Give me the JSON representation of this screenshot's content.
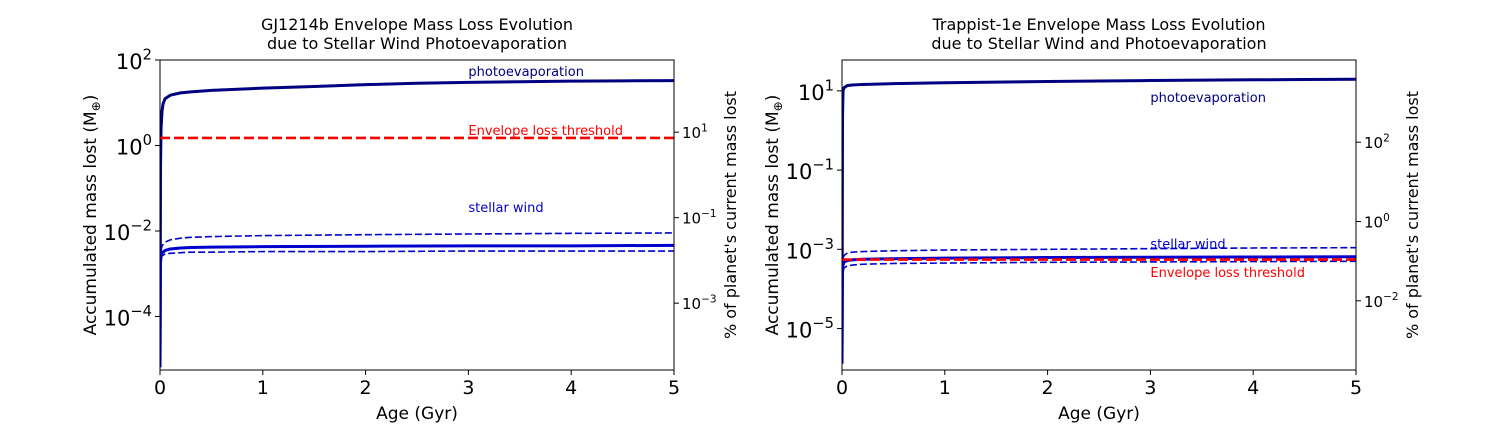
{
  "chart_data": [
    {
      "type": "line",
      "title": [
        "GJ1214b Envelope Mass Loss Evolution",
        "due to Stellar Wind Photoevaporation"
      ],
      "xlabel": "Age (Gyr)",
      "ylabel": "Accumulated mass lost (M",
      "ylabel_sub": "⊕",
      "y2label": "% of planet's current mass lost",
      "x_scale": "linear",
      "y_scale": "log",
      "xlim": [
        0,
        5
      ],
      "ylim": [
        5.6e-06,
        100
      ],
      "y2lim": [
        2.73e-05,
        488
      ],
      "xticks": [
        "0",
        "1",
        "2",
        "3",
        "4",
        "5"
      ],
      "yticks": [
        {
          "base": "10",
          "exp": "2",
          "value": 100
        },
        {
          "base": "10",
          "exp": "0",
          "value": 1
        },
        {
          "base": "10",
          "exp": "−2",
          "value": 0.01
        },
        {
          "base": "10",
          "exp": "−4",
          "value": 0.0001
        }
      ],
      "y2ticks": [
        {
          "base": "10",
          "exp": "1",
          "value": 10
        },
        {
          "base": "10",
          "exp": "−1",
          "value": 0.1
        },
        {
          "base": "10",
          "exp": "−3",
          "value": 0.001
        }
      ],
      "grid": false,
      "series": [
        {
          "name": "photoevaporation",
          "color": "#000080",
          "style": "solid",
          "width": 3,
          "x": [
            0,
            0.005,
            0.01,
            0.02,
            0.03,
            0.05,
            0.1,
            0.2,
            0.3,
            0.5,
            1,
            1.5,
            2,
            2.5,
            3,
            3.5,
            4,
            4.5,
            5
          ],
          "y": [
            6.5e-06,
            0.3,
            2.5,
            6.5,
            9.5,
            12.5,
            15,
            17,
            18,
            19.5,
            22,
            24,
            26.5,
            28.5,
            30,
            31,
            32,
            32.5,
            33
          ]
        },
        {
          "name": "stellar wind",
          "color": "#0000cd",
          "style": "solid",
          "width": 3,
          "x": [
            0,
            0.005,
            0.01,
            0.02,
            0.05,
            0.1,
            0.2,
            0.3,
            0.5,
            1,
            2,
            3,
            4,
            5
          ],
          "y": [
            6.5e-06,
            0.0018,
            0.0026,
            0.0031,
            0.0035,
            0.0038,
            0.004,
            0.0041,
            0.0042,
            0.0043,
            0.0044,
            0.0045,
            0.0045,
            0.0046
          ]
        },
        {
          "name": "",
          "color": "#0000cd",
          "style": "dashed",
          "width": 1.6,
          "x": [
            0.01,
            0.02,
            0.05,
            0.1,
            0.2,
            0.3,
            0.5,
            1,
            2,
            3,
            4,
            5
          ],
          "y": [
            0.0035,
            0.0045,
            0.0055,
            0.0062,
            0.0068,
            0.0071,
            0.0074,
            0.0078,
            0.0082,
            0.0085,
            0.0088,
            0.009
          ]
        },
        {
          "name": "",
          "color": "#0000cd",
          "style": "dashed",
          "width": 1.6,
          "x": [
            0.01,
            0.02,
            0.05,
            0.1,
            0.2,
            0.3,
            0.5,
            1,
            2,
            3,
            4,
            5
          ],
          "y": [
            0.0022,
            0.0026,
            0.0029,
            0.003,
            0.0031,
            0.0032,
            0.0032,
            0.0033,
            0.0033,
            0.0034,
            0.0034,
            0.0034
          ]
        },
        {
          "name": "Envelope loss threshold",
          "color": "#ff0000",
          "style": "dashed",
          "width": 2.6,
          "x": [
            0,
            5
          ],
          "y": [
            1.5,
            1.5
          ]
        }
      ],
      "annotations": [
        {
          "text": "photoevaporation",
          "x": 3.0,
          "y": 55,
          "color": "#000080"
        },
        {
          "text": "Envelope loss threshold",
          "x": 3.0,
          "y": 2.3,
          "color": "#ff0000"
        },
        {
          "text": "stellar wind",
          "x": 3.0,
          "y": 0.036,
          "color": "#0000cd"
        }
      ]
    },
    {
      "type": "line",
      "title": [
        "Trappist-1e Envelope Mass Loss Evolution",
        "due to Stellar Wind and Photoevaporation"
      ],
      "xlabel": "Age (Gyr)",
      "ylabel": "Accumulated mass lost (M",
      "ylabel_sub": "⊕",
      "y2label": "% of planet's current mass lost",
      "x_scale": "linear",
      "y_scale": "log",
      "xlim": [
        0,
        5
      ],
      "ylim": [
        9e-07,
        60
      ],
      "y2lim": [
        0.00018,
        11844
      ],
      "xticks": [
        "0",
        "1",
        "2",
        "3",
        "4",
        "5"
      ],
      "yticks": [
        {
          "base": "10",
          "exp": "1",
          "value": 10
        },
        {
          "base": "10",
          "exp": "−1",
          "value": 0.1
        },
        {
          "base": "10",
          "exp": "−3",
          "value": 0.001
        },
        {
          "base": "10",
          "exp": "−5",
          "value": 1e-05
        }
      ],
      "y2ticks": [
        {
          "base": "10",
          "exp": "2",
          "value": 100
        },
        {
          "base": "10",
          "exp": "0",
          "value": 1
        },
        {
          "base": "10",
          "exp": "−2",
          "value": 0.01
        }
      ],
      "grid": false,
      "series": [
        {
          "name": "photoevaporation",
          "color": "#000080",
          "style": "solid",
          "width": 3,
          "x": [
            0,
            0.005,
            0.01,
            0.02,
            0.05,
            0.1,
            0.2,
            0.5,
            1,
            1.5,
            2,
            2.5,
            3,
            3.5,
            4,
            4.5,
            5
          ],
          "y": [
            1.3e-06,
            2,
            10,
            12,
            13.5,
            14,
            14.5,
            15.2,
            16,
            16.6,
            17.2,
            17.7,
            18.2,
            18.6,
            19,
            19.3,
            19.6
          ]
        },
        {
          "name": "stellar wind",
          "color": "#0000cd",
          "style": "solid",
          "width": 3,
          "x": [
            0,
            0.005,
            0.01,
            0.02,
            0.05,
            0.1,
            0.2,
            0.5,
            1,
            2,
            3,
            4,
            5
          ],
          "y": [
            1.3e-06,
            0.00025,
            0.0004,
            0.00048,
            0.00052,
            0.00054,
            0.00056,
            0.00058,
            0.0006,
            0.00062,
            0.00063,
            0.00064,
            0.00065
          ]
        },
        {
          "name": "",
          "color": "#0000cd",
          "style": "dashed",
          "width": 1.6,
          "x": [
            0.01,
            0.02,
            0.05,
            0.1,
            0.2,
            0.5,
            1,
            2,
            3,
            4,
            5
          ],
          "y": [
            0.0006,
            0.0007,
            0.0008,
            0.00085,
            0.00088,
            0.00092,
            0.00096,
            0.001,
            0.00104,
            0.00108,
            0.0011
          ]
        },
        {
          "name": "",
          "color": "#0000cd",
          "style": "dashed",
          "width": 1.6,
          "x": [
            0.01,
            0.02,
            0.05,
            0.1,
            0.2,
            0.5,
            1,
            2,
            3,
            4,
            5
          ],
          "y": [
            0.00028,
            0.00034,
            0.00038,
            0.0004,
            0.00042,
            0.00044,
            0.00045,
            0.00047,
            0.00048,
            0.00049,
            0.0005
          ]
        },
        {
          "name": "Envelope loss threshold",
          "color": "#ff0000",
          "style": "dashed",
          "width": 2.6,
          "x": [
            0,
            5
          ],
          "y": [
            0.00055,
            0.00055
          ]
        }
      ],
      "annotations": [
        {
          "text": "photoevaporation",
          "x": 3.0,
          "y": 7,
          "color": "#000080"
        },
        {
          "text": "stellar wind",
          "x": 3.0,
          "y": 0.0014,
          "color": "#0000cd"
        },
        {
          "text": "Envelope loss threshold",
          "x": 3.0,
          "y": 0.00027,
          "color": "#ff0000"
        }
      ]
    }
  ]
}
